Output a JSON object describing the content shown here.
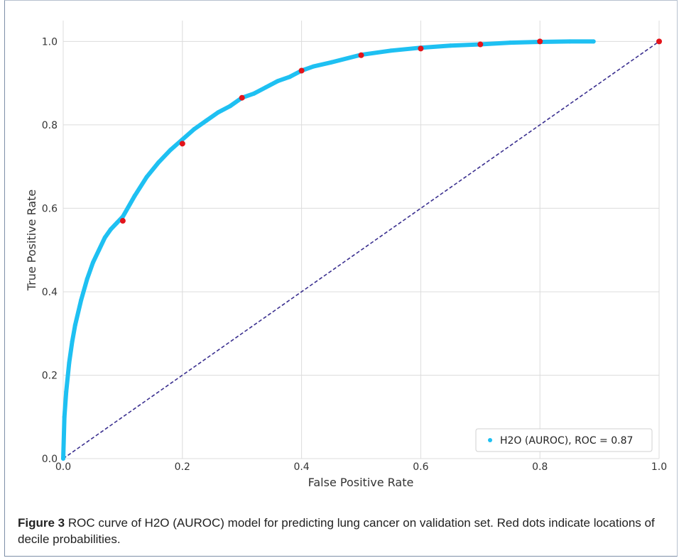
{
  "chart_data": {
    "type": "scatter",
    "title": "",
    "xlabel": "False Positive Rate",
    "ylabel": "True Positive Rate",
    "xlim": [
      0.0,
      1.0
    ],
    "ylim": [
      0.0,
      1.05
    ],
    "x_ticks": [
      "0.0",
      "0.2",
      "0.4",
      "0.6",
      "0.8",
      "1.0"
    ],
    "y_ticks": [
      "0.0",
      "0.2",
      "0.4",
      "0.6",
      "0.8",
      "1.0"
    ],
    "grid": true,
    "legend_position": "lower-right",
    "colors": {
      "curve": "#1ec0f2",
      "deciles": "#e3141b",
      "diagonal": "#3a2f8f",
      "grid": "#dcdcdc"
    },
    "series": [
      {
        "name": "H2O (AUROC), ROC = 0.87",
        "type": "scatter",
        "x": [
          0.0,
          0.002,
          0.005,
          0.01,
          0.015,
          0.02,
          0.03,
          0.04,
          0.05,
          0.06,
          0.07,
          0.08,
          0.09,
          0.1,
          0.12,
          0.14,
          0.16,
          0.18,
          0.2,
          0.22,
          0.24,
          0.26,
          0.28,
          0.3,
          0.32,
          0.34,
          0.36,
          0.38,
          0.4,
          0.42,
          0.45,
          0.5,
          0.55,
          0.6,
          0.65,
          0.7,
          0.75,
          0.8,
          0.85,
          0.89
        ],
        "y": [
          0.0,
          0.1,
          0.16,
          0.23,
          0.28,
          0.32,
          0.38,
          0.43,
          0.47,
          0.5,
          0.53,
          0.55,
          0.565,
          0.58,
          0.63,
          0.675,
          0.71,
          0.74,
          0.765,
          0.79,
          0.81,
          0.83,
          0.845,
          0.865,
          0.875,
          0.89,
          0.905,
          0.915,
          0.93,
          0.94,
          0.95,
          0.968,
          0.978,
          0.985,
          0.99,
          0.993,
          0.997,
          0.999,
          1.0,
          1.0
        ]
      },
      {
        "name": "",
        "type": "line",
        "x": [
          0.0,
          1.0
        ],
        "y": [
          0.0,
          1.0
        ]
      }
    ],
    "decile_points": {
      "x": [
        0.1,
        0.2,
        0.3,
        0.4,
        0.5,
        0.6,
        0.7,
        0.8,
        1.0
      ],
      "y": [
        0.57,
        0.755,
        0.865,
        0.93,
        0.967,
        0.983,
        0.993,
        1.0,
        1.0
      ]
    }
  },
  "caption": {
    "label": "Figure 3",
    "text": "ROC curve of H2O (AUROC) model for predicting lung cancer on validation set. Red dots indicate locations of decile probabilities."
  }
}
